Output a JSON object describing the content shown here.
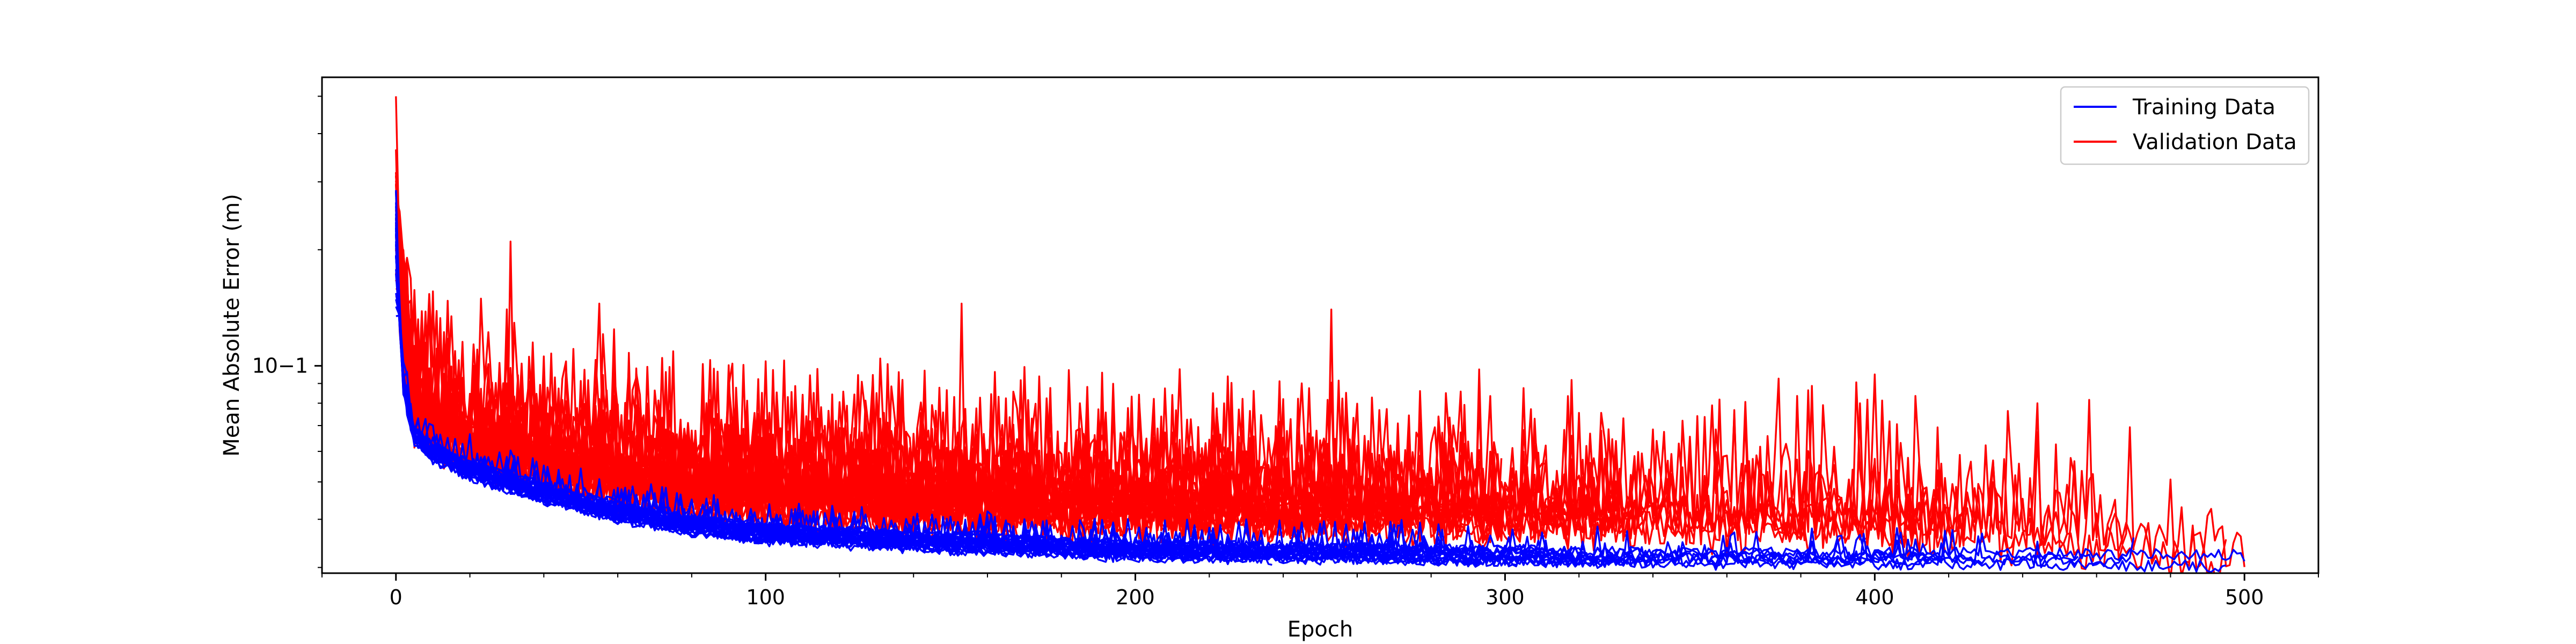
{
  "chart_data": {
    "type": "line",
    "title": "",
    "xlabel": "Epoch",
    "ylabel": "Mean Absolute Error (m)",
    "yscale": "log",
    "xlim": [
      -20,
      520
    ],
    "ylim": [
      0.029,
      0.56
    ],
    "x_ticks": [
      0,
      100,
      200,
      300,
      400,
      500
    ],
    "x_tick_labels": [
      "0",
      "100",
      "200",
      "300",
      "400",
      "500"
    ],
    "y_major_ticks": [
      0.1
    ],
    "y_major_tick_labels": [
      "10−1"
    ],
    "grid": false,
    "legend": "top-right",
    "colors": {
      "training": "#0000ff",
      "validation": "#ff0000"
    },
    "series": [
      {
        "name": "Training Data",
        "color": "#0000ff",
        "runs": 28,
        "epochs_range": [
          0,
          500
        ],
        "x": [
          0,
          2,
          5,
          10,
          20,
          40,
          60,
          80,
          100,
          150,
          200,
          250,
          300,
          350,
          400,
          450,
          500
        ],
        "values": [
          0.2,
          0.09,
          0.066,
          0.06,
          0.054,
          0.047,
          0.042,
          0.039,
          0.037,
          0.035,
          0.0335,
          0.033,
          0.0325,
          0.032,
          0.032,
          0.0318,
          0.0315
        ]
      },
      {
        "name": "Validation Data",
        "color": "#ff0000",
        "runs": 28,
        "epochs_range": [
          0,
          500
        ],
        "x": [
          0,
          2,
          5,
          10,
          20,
          40,
          60,
          80,
          100,
          150,
          200,
          250,
          300,
          350,
          400,
          450,
          500
        ],
        "values": [
          0.16,
          0.1,
          0.075,
          0.068,
          0.062,
          0.055,
          0.05,
          0.047,
          0.045,
          0.043,
          0.042,
          0.041,
          0.041,
          0.04,
          0.039,
          0.036,
          0.033
        ],
        "annotated_peaks": [
          {
            "x": 0,
            "y": 0.5
          },
          {
            "x": 31,
            "y": 0.21
          },
          {
            "x": 55,
            "y": 0.145
          },
          {
            "x": 153,
            "y": 0.145
          },
          {
            "x": 253,
            "y": 0.14
          },
          {
            "x": 400,
            "y": 0.095
          }
        ]
      }
    ]
  }
}
